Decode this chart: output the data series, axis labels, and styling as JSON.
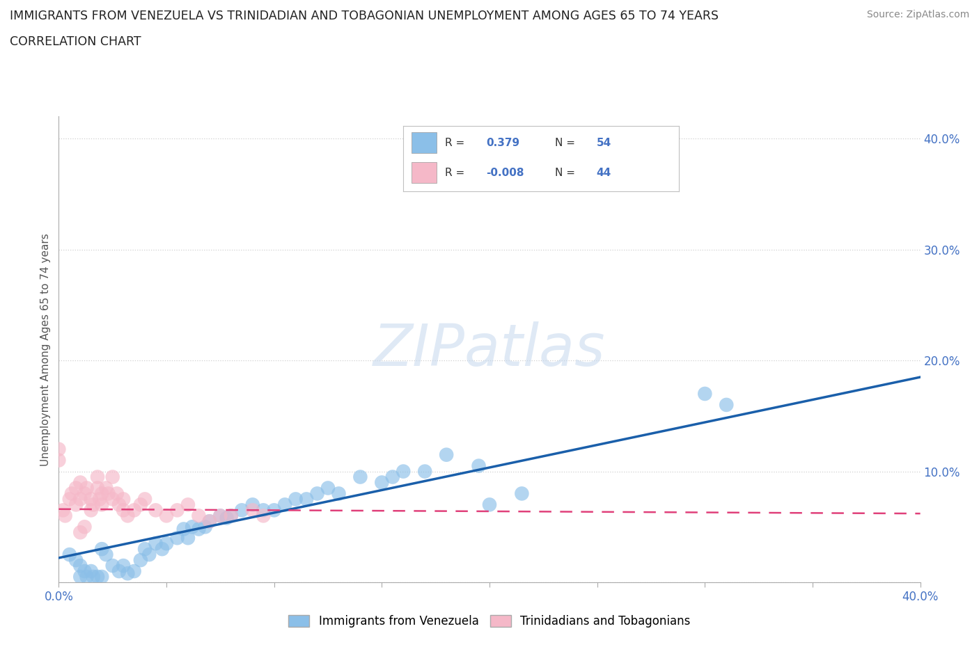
{
  "title_line1": "IMMIGRANTS FROM VENEZUELA VS TRINIDADIAN AND TOBAGONIAN UNEMPLOYMENT AMONG AGES 65 TO 74 YEARS",
  "title_line2": "CORRELATION CHART",
  "source_text": "Source: ZipAtlas.com",
  "ylabel": "Unemployment Among Ages 65 to 74 years",
  "xlim": [
    0.0,
    0.4
  ],
  "ylim": [
    0.0,
    0.42
  ],
  "yticks": [
    0.0,
    0.1,
    0.2,
    0.3,
    0.4
  ],
  "xticks": [
    0.0,
    0.05,
    0.1,
    0.15,
    0.2,
    0.25,
    0.3,
    0.35,
    0.4
  ],
  "background_color": "#ffffff",
  "grid_color": "#d0d0d0",
  "blue_color": "#8bbfe8",
  "pink_color": "#f5b8c8",
  "blue_line_color": "#1a5faa",
  "pink_line_color": "#e0407a",
  "blue_line_x0": 0.0,
  "blue_line_y0": 0.022,
  "blue_line_x1": 0.4,
  "blue_line_y1": 0.185,
  "pink_line_x0": 0.0,
  "pink_line_y0": 0.066,
  "pink_line_x1": 0.4,
  "pink_line_y1": 0.062,
  "legend_R1": "0.379",
  "legend_N1": "54",
  "legend_R2": "-0.008",
  "legend_N2": "44",
  "watermark": "ZIPatlas",
  "blue_scatter_x": [
    0.005,
    0.008,
    0.01,
    0.01,
    0.012,
    0.013,
    0.015,
    0.016,
    0.018,
    0.02,
    0.02,
    0.022,
    0.025,
    0.028,
    0.03,
    0.032,
    0.035,
    0.038,
    0.04,
    0.042,
    0.045,
    0.048,
    0.05,
    0.055,
    0.058,
    0.06,
    0.062,
    0.065,
    0.068,
    0.07,
    0.075,
    0.078,
    0.08,
    0.085,
    0.09,
    0.095,
    0.1,
    0.105,
    0.11,
    0.115,
    0.12,
    0.125,
    0.13,
    0.14,
    0.15,
    0.155,
    0.16,
    0.17,
    0.18,
    0.195,
    0.2,
    0.215,
    0.3,
    0.31
  ],
  "blue_scatter_y": [
    0.025,
    0.02,
    0.015,
    0.005,
    0.01,
    0.005,
    0.01,
    0.005,
    0.005,
    0.005,
    0.03,
    0.025,
    0.015,
    0.01,
    0.015,
    0.008,
    0.01,
    0.02,
    0.03,
    0.025,
    0.035,
    0.03,
    0.035,
    0.04,
    0.048,
    0.04,
    0.05,
    0.048,
    0.05,
    0.055,
    0.06,
    0.058,
    0.06,
    0.065,
    0.07,
    0.065,
    0.065,
    0.07,
    0.075,
    0.075,
    0.08,
    0.085,
    0.08,
    0.095,
    0.09,
    0.095,
    0.1,
    0.1,
    0.115,
    0.105,
    0.07,
    0.08,
    0.17,
    0.16
  ],
  "pink_scatter_x": [
    0.0,
    0.0,
    0.002,
    0.003,
    0.005,
    0.006,
    0.008,
    0.008,
    0.01,
    0.01,
    0.012,
    0.013,
    0.015,
    0.015,
    0.016,
    0.018,
    0.018,
    0.019,
    0.02,
    0.02,
    0.022,
    0.023,
    0.025,
    0.025,
    0.027,
    0.028,
    0.03,
    0.03,
    0.032,
    0.035,
    0.038,
    0.04,
    0.045,
    0.05,
    0.055,
    0.06,
    0.065,
    0.07,
    0.075,
    0.08,
    0.09,
    0.095,
    0.01,
    0.012
  ],
  "pink_scatter_y": [
    0.12,
    0.11,
    0.065,
    0.06,
    0.075,
    0.08,
    0.07,
    0.085,
    0.075,
    0.09,
    0.08,
    0.085,
    0.075,
    0.065,
    0.07,
    0.085,
    0.095,
    0.075,
    0.08,
    0.07,
    0.085,
    0.08,
    0.095,
    0.075,
    0.08,
    0.07,
    0.065,
    0.075,
    0.06,
    0.065,
    0.07,
    0.075,
    0.065,
    0.06,
    0.065,
    0.07,
    0.06,
    0.055,
    0.06,
    0.06,
    0.065,
    0.06,
    0.045,
    0.05
  ]
}
